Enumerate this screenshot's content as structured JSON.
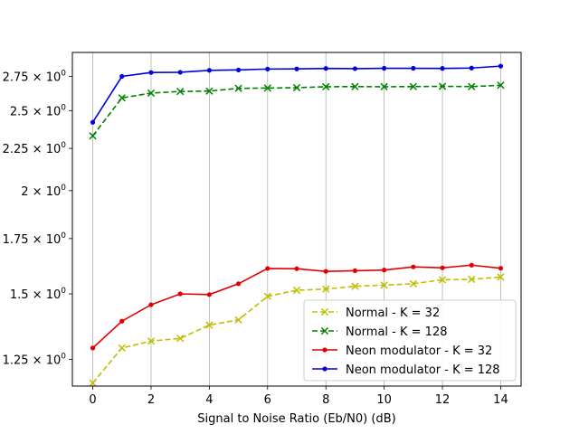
{
  "chart_data": {
    "type": "line",
    "title": "",
    "xlabel": "Signal to Noise Ratio (Eb/N0) (dB)",
    "ylabel": "",
    "y_scale": "log",
    "xlim": [
      -0.7,
      14.7
    ],
    "ylim": [
      1.16,
      2.94
    ],
    "grid": "vertical",
    "legend_position": "lower-right",
    "x": [
      0,
      1,
      2,
      3,
      4,
      5,
      6,
      7,
      8,
      9,
      10,
      11,
      12,
      13,
      14
    ],
    "x_ticks": [
      0,
      2,
      4,
      6,
      8,
      10,
      12,
      14
    ],
    "x_tick_labels": [
      "0",
      "2",
      "4",
      "6",
      "8",
      "10",
      "12",
      "14"
    ],
    "y_ticks": [
      1.25,
      1.5,
      1.75,
      2,
      2.25,
      2.5,
      2.75
    ],
    "y_tick_labels": [
      {
        "base": "1.25 × 10",
        "exp": "0"
      },
      {
        "base": "1.5 × 10",
        "exp": "0"
      },
      {
        "base": "1.75 × 10",
        "exp": "0"
      },
      {
        "base": "2 × 10",
        "exp": "0"
      },
      {
        "base": "2.25 × 10",
        "exp": "0"
      },
      {
        "base": "2.5 × 10",
        "exp": "0"
      },
      {
        "base": "2.75 × 10",
        "exp": "0"
      }
    ],
    "series": [
      {
        "name": "Normal - K = 32",
        "color": "#bfbf00",
        "line_style": "dashed",
        "marker": "x",
        "values": [
          1.17,
          1.29,
          1.315,
          1.325,
          1.375,
          1.395,
          1.49,
          1.515,
          1.52,
          1.532,
          1.537,
          1.543,
          1.56,
          1.562,
          1.572
        ]
      },
      {
        "name": "Normal - K = 128",
        "color": "#008000",
        "line_style": "dashed",
        "marker": "x",
        "values": [
          2.33,
          2.59,
          2.625,
          2.637,
          2.64,
          2.66,
          2.662,
          2.665,
          2.672,
          2.673,
          2.672,
          2.673,
          2.675,
          2.673,
          2.683
        ]
      },
      {
        "name": "Neon modulator - K = 32",
        "color": "#e00000",
        "line_style": "solid",
        "marker": "dot",
        "values": [
          1.29,
          1.39,
          1.455,
          1.5,
          1.497,
          1.543,
          1.61,
          1.609,
          1.597,
          1.6,
          1.603,
          1.617,
          1.613,
          1.625,
          1.611
        ]
      },
      {
        "name": "Neon modulator - K = 128",
        "color": "#0000dd",
        "line_style": "solid",
        "marker": "dot",
        "values": [
          2.42,
          2.75,
          2.78,
          2.782,
          2.797,
          2.8,
          2.807,
          2.808,
          2.812,
          2.81,
          2.813,
          2.813,
          2.812,
          2.815,
          2.83
        ]
      }
    ]
  }
}
